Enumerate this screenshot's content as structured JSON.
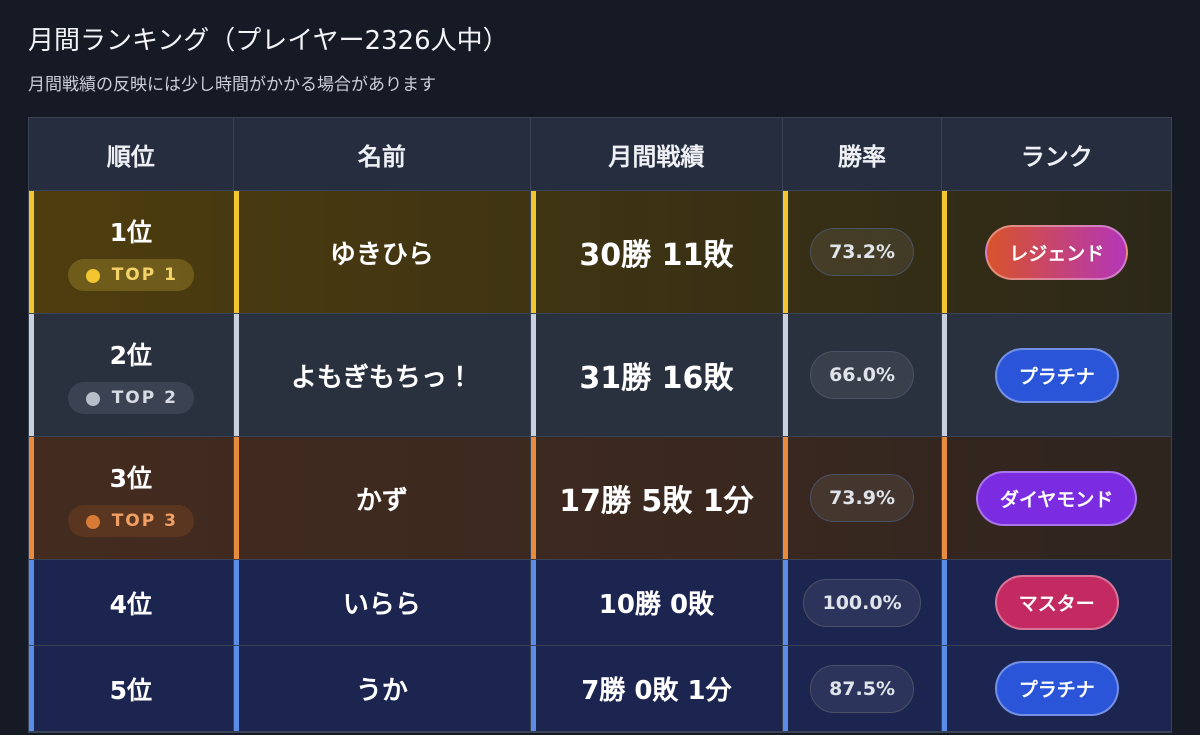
{
  "header": {
    "title": "月間ランキング（プレイヤー2326人中）",
    "subtitle": "月間戦績の反映には少し時間がかかる場合があります"
  },
  "table": {
    "columns": [
      "順位",
      "名前",
      "月間戦績",
      "勝率",
      "ランク"
    ],
    "rows": [
      {
        "rank": "1位",
        "badge": "TOP 1",
        "name": "ゆきひら",
        "record": "30勝 11敗",
        "win_rate": "73.2%",
        "tier": "レジェンド"
      },
      {
        "rank": "2位",
        "badge": "TOP 2",
        "name": "よもぎもちっ！",
        "record": "31勝 16敗",
        "win_rate": "66.0%",
        "tier": "プラチナ"
      },
      {
        "rank": "3位",
        "badge": "TOP 3",
        "name": "かず",
        "record": "17勝 5敗 1分",
        "win_rate": "73.9%",
        "tier": "ダイヤモンド"
      },
      {
        "rank": "4位",
        "name": "いらら",
        "record": "10勝 0敗",
        "win_rate": "100.0%",
        "tier": "マスター"
      },
      {
        "rank": "5位",
        "name": "うか",
        "record": "7勝 0敗 1分",
        "win_rate": "87.5%",
        "tier": "プラチナ"
      }
    ]
  }
}
